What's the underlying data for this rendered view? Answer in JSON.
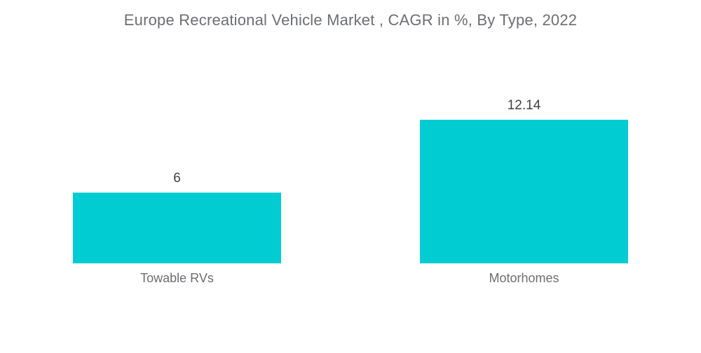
{
  "title": "Europe Recreational Vehicle Market , CAGR in %, By Type, 2022",
  "colors": {
    "background": "#FFFFFF",
    "bar": "#00CCD2",
    "title_text": "#6D6E71",
    "value_text": "#3F3F3F",
    "category_text": "#6D6E71"
  },
  "chart_data": {
    "type": "bar",
    "orientation": "vertical",
    "title": "Europe Recreational Vehicle Market , CAGR in %, By Type, 2022",
    "categories": [
      "Towable RVs",
      "Motorhomes"
    ],
    "values": [
      6,
      12.14
    ],
    "value_labels": [
      "6",
      "12.14"
    ],
    "xlabel": "",
    "ylabel": "",
    "ylim": [
      0,
      14
    ],
    "grid": false,
    "legend": false,
    "axes_visible": false,
    "bar_color": "#00CCD2"
  }
}
